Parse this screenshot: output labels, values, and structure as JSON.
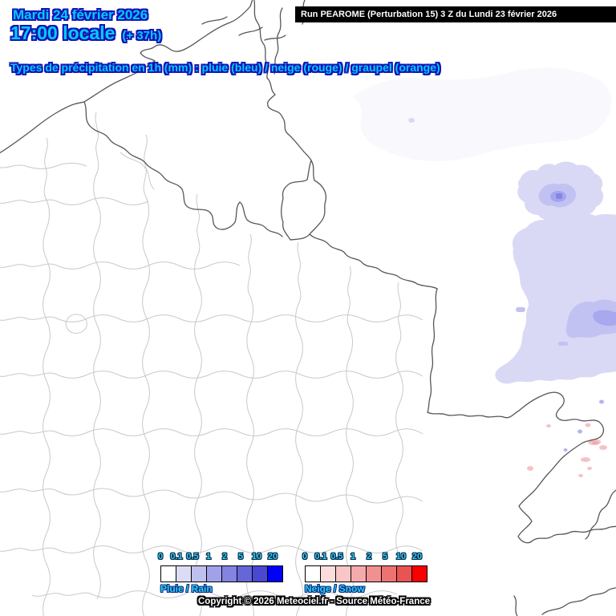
{
  "header": {
    "date_line": "Mardi 24 février 2026",
    "time_line": "17:00 locale",
    "offset": "(+ 37h)",
    "run_info": "Run PEAROME (Perturbation 15) 3 Z du Lundi 23 février 2026",
    "subtitle": "Types de précipitation en 1h (mm) : pluie (bleu) / neige (rouge) / graupel (orange)"
  },
  "legend": {
    "tick_labels": [
      "0",
      "0.1",
      "0.5",
      "1",
      "2",
      "5",
      "10",
      "20"
    ],
    "rain": {
      "label": "Pluie / Rain",
      "colors": [
        "#ffffff",
        "#dcdcf6",
        "#bfbff0",
        "#a1a1e9",
        "#8383e1",
        "#6666d9",
        "#4848d1",
        "#0000fb"
      ]
    },
    "snow": {
      "label": "Neige / Snow",
      "colors": [
        "#ffffff",
        "#fbdddd",
        "#f8c6c6",
        "#f5abab",
        "#f19090",
        "#ee7272",
        "#ea5353",
        "#fb0000"
      ]
    }
  },
  "footer": {
    "copyright": "Copyright © 2026 Meteociel.fr - Source Météo-France"
  },
  "colors": {
    "accent_cyan": "#00ccff",
    "accent_outline_blue": "#1414b4",
    "rain_light": "#d9d9f6",
    "rain_medium": "#c2c2f2",
    "rain_dark": "#a4a4ee",
    "snow_pink": "#f5c2c6",
    "country_border": "#565656",
    "department_border": "#c9c9c9"
  }
}
